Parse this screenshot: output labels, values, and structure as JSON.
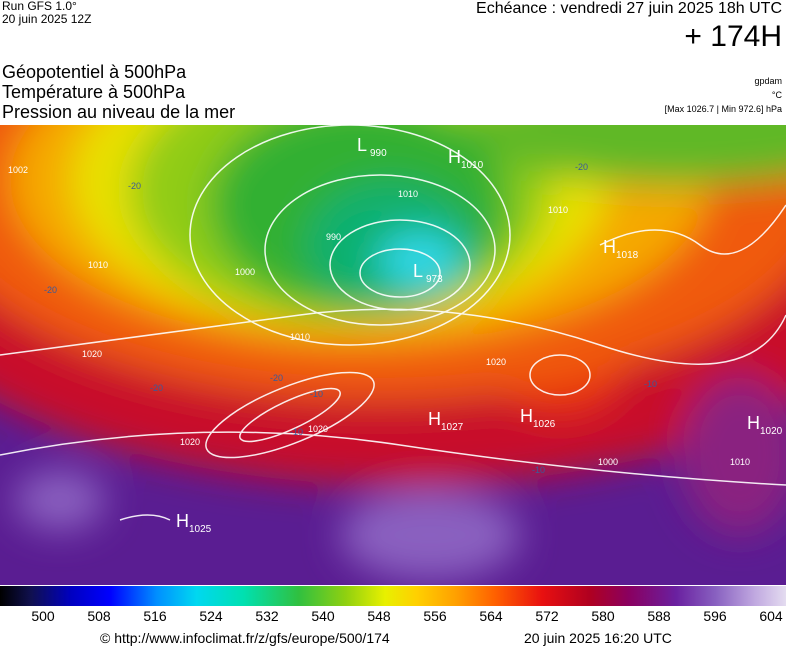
{
  "header": {
    "run": "Run GFS 1.0°",
    "run_date": "20 juin 2025 12Z",
    "echeance": "Echéance : vendredi 27 juin 2025 18h UTC",
    "lead": "+ 174H"
  },
  "titles": [
    "Géopotentiel à 500hPa",
    "Température à 500hPa",
    "Pression au niveau de la mer"
  ],
  "units": [
    "gpdam",
    "°C",
    "[Max 1026.7 | Min 972.6] hPa"
  ],
  "pressure_centers": [
    {
      "type": "L",
      "value": "990"
    },
    {
      "type": "H",
      "value": "1010"
    },
    {
      "type": "L",
      "value": "973"
    },
    {
      "type": "H",
      "value": "1018"
    },
    {
      "type": "H",
      "value": "1027"
    },
    {
      "type": "H",
      "value": "1026"
    },
    {
      "type": "H",
      "value": "1020"
    },
    {
      "type": "H",
      "value": "1025"
    }
  ],
  "isobar_labels": [
    "1002",
    "1010",
    "1000",
    "990",
    "1010",
    "1020",
    "1020",
    "1020",
    "1010",
    "1000",
    "1010",
    "1020",
    "1010"
  ],
  "temperature_labels": [
    "-20",
    "-20",
    "-10",
    "-20",
    "-10",
    "-20",
    "-10",
    "-10",
    "-20"
  ],
  "colorbar": {
    "ticks": [
      500,
      508,
      516,
      524,
      532,
      540,
      548,
      556,
      564,
      572,
      580,
      588,
      596,
      604
    ]
  },
  "footer": {
    "url": "© http://www.infoclimat.fr/z/gfs/europe/500/174",
    "date": "20 juin 2025 16:20 UTC"
  }
}
